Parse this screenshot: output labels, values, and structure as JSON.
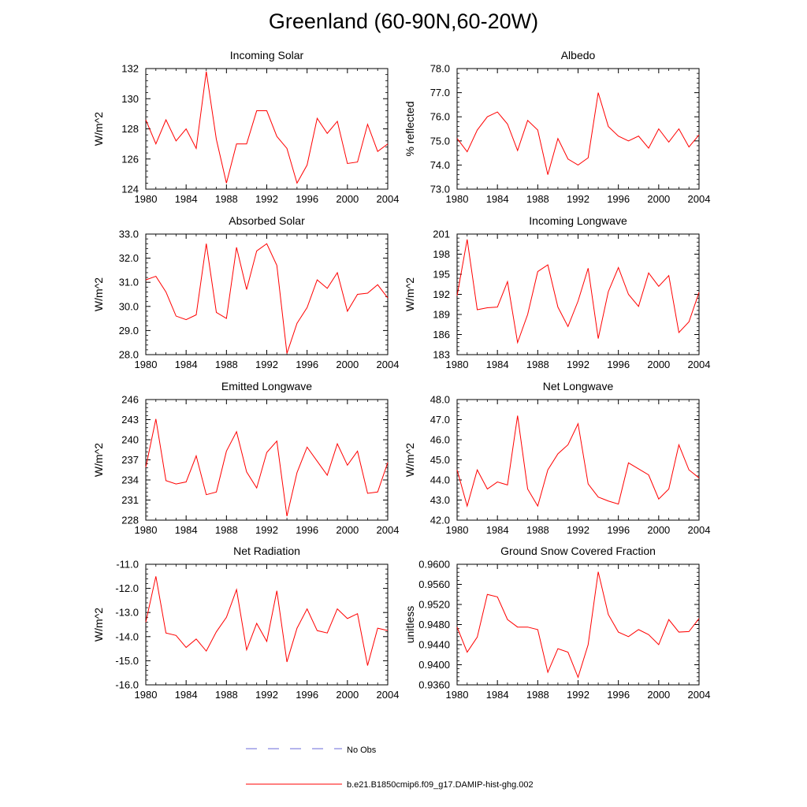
{
  "figure": {
    "title": "Greenland (60-90N,60-20W)"
  },
  "colors": {
    "model_line": "#ff0000",
    "obs_line": "#6a6ad8"
  },
  "legend": {
    "items": [
      {
        "label": "No Obs",
        "style": "dashed"
      },
      {
        "label": "b.e21.B1850cmip6.f09_g17.DAMIP-hist-ghg.002",
        "style": "solid"
      }
    ]
  },
  "chart_data": [
    {
      "type": "line",
      "title": "Incoming Solar",
      "ylabel": "W/m^2",
      "xlim": [
        1980,
        2004
      ],
      "ylim": [
        124,
        132
      ],
      "xticks": [
        "1980",
        "1984",
        "1988",
        "1992",
        "1996",
        "2000",
        "2004"
      ],
      "yticks": [
        "124",
        "126",
        "128",
        "130",
        "132"
      ],
      "x": [
        1980,
        1981,
        1982,
        1983,
        1984,
        1985,
        1986,
        1987,
        1988,
        1989,
        1990,
        1991,
        1992,
        1993,
        1994,
        1995,
        1996,
        1997,
        1998,
        1999,
        2000,
        2001,
        2002,
        2003,
        2004
      ],
      "series": [
        {
          "values": [
            128.6,
            127.0,
            128.6,
            127.2,
            128.0,
            126.7,
            131.8,
            127.3,
            124.4,
            127.0,
            127.0,
            129.2,
            129.2,
            127.5,
            126.7,
            124.4,
            125.6,
            128.7,
            127.7,
            128.5,
            125.7,
            125.8,
            128.3,
            126.5,
            127.0
          ]
        }
      ]
    },
    {
      "type": "line",
      "title": "Albedo",
      "ylabel": "% reflected",
      "xlim": [
        1980,
        2004
      ],
      "ylim": [
        73.0,
        78.0
      ],
      "xticks": [
        "1980",
        "1984",
        "1988",
        "1992",
        "1996",
        "2000",
        "2004"
      ],
      "yticks": [
        "73.0",
        "74.0",
        "75.0",
        "76.0",
        "77.0",
        "78.0"
      ],
      "x": [
        1980,
        1981,
        1982,
        1983,
        1984,
        1985,
        1986,
        1987,
        1988,
        1989,
        1990,
        1991,
        1992,
        1993,
        1994,
        1995,
        1996,
        1997,
        1998,
        1999,
        2000,
        2001,
        2002,
        2003,
        2004
      ],
      "series": [
        {
          "values": [
            75.1,
            74.55,
            75.45,
            76.0,
            76.2,
            75.7,
            74.6,
            75.85,
            75.45,
            73.6,
            75.1,
            74.25,
            74.0,
            74.3,
            77.0,
            75.6,
            75.2,
            75.0,
            75.2,
            74.7,
            75.5,
            74.95,
            75.5,
            74.75,
            75.25
          ]
        }
      ]
    },
    {
      "type": "line",
      "title": "Absorbed Solar",
      "ylabel": "W/m^2",
      "xlim": [
        1980,
        2004
      ],
      "ylim": [
        28.0,
        33.0
      ],
      "xticks": [
        "1980",
        "1984",
        "1988",
        "1992",
        "1996",
        "2000",
        "2004"
      ],
      "yticks": [
        "28.0",
        "29.0",
        "30.0",
        "31.0",
        "32.0",
        "33.0"
      ],
      "x": [
        1980,
        1981,
        1982,
        1983,
        1984,
        1985,
        1986,
        1987,
        1988,
        1989,
        1990,
        1991,
        1992,
        1993,
        1994,
        1995,
        1996,
        1997,
        1998,
        1999,
        2000,
        2001,
        2002,
        2003,
        2004
      ],
      "series": [
        {
          "values": [
            31.1,
            31.25,
            30.6,
            29.6,
            29.45,
            29.65,
            32.6,
            29.75,
            29.5,
            32.45,
            30.7,
            32.3,
            32.6,
            31.7,
            28.05,
            29.3,
            29.95,
            31.1,
            30.75,
            31.4,
            29.8,
            30.5,
            30.55,
            30.9,
            30.35
          ]
        }
      ]
    },
    {
      "type": "line",
      "title": "Incoming Longwave",
      "ylabel": "W/m^2",
      "xlim": [
        1980,
        2004
      ],
      "ylim": [
        183,
        201
      ],
      "xticks": [
        "1980",
        "1984",
        "1988",
        "1992",
        "1996",
        "2000",
        "2004"
      ],
      "yticks": [
        "183",
        "186",
        "189",
        "192",
        "195",
        "198",
        "201"
      ],
      "x": [
        1980,
        1981,
        1982,
        1983,
        1984,
        1985,
        1986,
        1987,
        1988,
        1989,
        1990,
        1991,
        1992,
        1993,
        1994,
        1995,
        1996,
        1997,
        1998,
        1999,
        2000,
        2001,
        2002,
        2003,
        2004
      ],
      "series": [
        {
          "values": [
            191.8,
            200.2,
            189.7,
            190.0,
            190.1,
            193.9,
            184.8,
            189.0,
            195.4,
            196.4,
            190.1,
            187.2,
            191.0,
            195.9,
            185.4,
            192.4,
            196.0,
            192.0,
            190.2,
            195.2,
            193.2,
            194.8,
            186.3,
            187.9,
            192.3
          ]
        }
      ]
    },
    {
      "type": "line",
      "title": "Emitted Longwave",
      "ylabel": "W/m^2",
      "xlim": [
        1980,
        2004
      ],
      "ylim": [
        228,
        246
      ],
      "xticks": [
        "1980",
        "1984",
        "1988",
        "1992",
        "1996",
        "2000",
        "2004"
      ],
      "yticks": [
        "228",
        "231",
        "234",
        "237",
        "240",
        "243",
        "246"
      ],
      "x": [
        1980,
        1981,
        1982,
        1983,
        1984,
        1985,
        1986,
        1987,
        1988,
        1989,
        1990,
        1991,
        1992,
        1993,
        1994,
        1995,
        1996,
        1997,
        1998,
        1999,
        2000,
        2001,
        2002,
        2003,
        2004
      ],
      "series": [
        {
          "values": [
            235.9,
            243.1,
            233.9,
            233.4,
            233.7,
            237.6,
            231.8,
            232.2,
            238.3,
            241.2,
            235.2,
            232.8,
            238.1,
            239.8,
            228.6,
            235.1,
            238.9,
            236.8,
            234.7,
            239.4,
            236.2,
            238.3,
            232.0,
            232.2,
            236.6
          ]
        }
      ]
    },
    {
      "type": "line",
      "title": "Net Longwave",
      "ylabel": "W/m^2",
      "xlim": [
        1980,
        2004
      ],
      "ylim": [
        42.0,
        48.0
      ],
      "xticks": [
        "1980",
        "1984",
        "1988",
        "1992",
        "1996",
        "2000",
        "2004"
      ],
      "yticks": [
        "42.0",
        "43.0",
        "44.0",
        "45.0",
        "46.0",
        "47.0",
        "48.0"
      ],
      "x": [
        1980,
        1981,
        1982,
        1983,
        1984,
        1985,
        1986,
        1987,
        1988,
        1989,
        1990,
        1991,
        1992,
        1993,
        1994,
        1995,
        1996,
        1997,
        1998,
        1999,
        2000,
        2001,
        2002,
        2003,
        2004
      ],
      "series": [
        {
          "values": [
            44.5,
            42.7,
            44.5,
            43.55,
            43.9,
            43.75,
            47.2,
            43.55,
            42.7,
            44.5,
            45.3,
            45.75,
            46.8,
            43.8,
            43.15,
            42.95,
            42.8,
            44.85,
            44.55,
            44.25,
            43.05,
            43.55,
            45.75,
            44.5,
            44.1
          ]
        }
      ]
    },
    {
      "type": "line",
      "title": "Net Radiation",
      "ylabel": "W/m^2",
      "xlim": [
        1980,
        2004
      ],
      "ylim": [
        -16.0,
        -11.0
      ],
      "xticks": [
        "1980",
        "1984",
        "1988",
        "1992",
        "1996",
        "2000",
        "2004"
      ],
      "yticks": [
        "-16.0",
        "-15.0",
        "-14.0",
        "-13.0",
        "-12.0",
        "-11.0"
      ],
      "x": [
        1980,
        1981,
        1982,
        1983,
        1984,
        1985,
        1986,
        1987,
        1988,
        1989,
        1990,
        1991,
        1992,
        1993,
        1994,
        1995,
        1996,
        1997,
        1998,
        1999,
        2000,
        2001,
        2002,
        2003,
        2004
      ],
      "series": [
        {
          "values": [
            -13.4,
            -11.5,
            -13.85,
            -13.95,
            -14.45,
            -14.1,
            -14.6,
            -13.8,
            -13.2,
            -12.05,
            -14.55,
            -13.45,
            -14.2,
            -12.1,
            -15.05,
            -13.65,
            -12.85,
            -13.75,
            -13.85,
            -12.85,
            -13.25,
            -13.05,
            -15.2,
            -13.65,
            -13.75
          ]
        }
      ]
    },
    {
      "type": "line",
      "title": "Ground Snow Covered Fraction",
      "ylabel": "unitless",
      "xlim": [
        1980,
        2004
      ],
      "ylim": [
        0.936,
        0.96
      ],
      "xticks": [
        "1980",
        "1984",
        "1988",
        "1992",
        "1996",
        "2000",
        "2004"
      ],
      "yticks": [
        "0.9360",
        "0.9400",
        "0.9440",
        "0.9480",
        "0.9520",
        "0.9560",
        "0.9600"
      ],
      "x": [
        1980,
        1981,
        1982,
        1983,
        1984,
        1985,
        1986,
        1987,
        1988,
        1989,
        1990,
        1991,
        1992,
        1993,
        1994,
        1995,
        1996,
        1997,
        1998,
        1999,
        2000,
        2001,
        2002,
        2003,
        2004
      ],
      "series": [
        {
          "values": [
            0.9475,
            0.9425,
            0.9455,
            0.954,
            0.9535,
            0.949,
            0.9475,
            0.9475,
            0.947,
            0.9385,
            0.9432,
            0.9425,
            0.9375,
            0.944,
            0.9585,
            0.95,
            0.9465,
            0.9456,
            0.947,
            0.946,
            0.944,
            0.949,
            0.9465,
            0.9466,
            0.9492
          ]
        }
      ]
    }
  ]
}
